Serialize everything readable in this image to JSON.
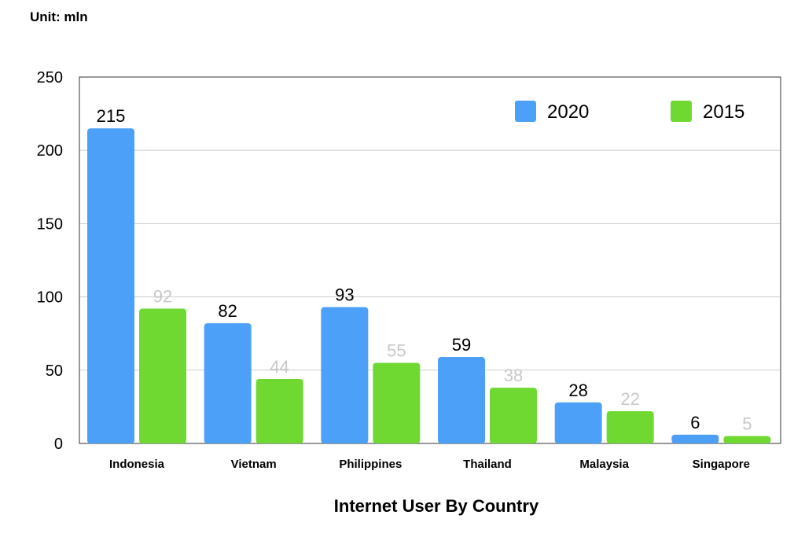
{
  "unit_label": "Unit: mln",
  "chart_data": {
    "type": "bar",
    "title": "",
    "xlabel": "Internet User By Country",
    "ylabel": "",
    "ylim": [
      0,
      250
    ],
    "yticks": [
      0,
      50,
      100,
      150,
      200,
      250
    ],
    "grid": true,
    "legend_position": "top-right",
    "categories": [
      "Indonesia",
      "Vietnam",
      "Philippines",
      "Thailand",
      "Malaysia",
      "Singapore"
    ],
    "series": [
      {
        "name": "2020",
        "color": "#4ca0f7",
        "label_color": "#000000",
        "values": [
          215,
          82,
          93,
          59,
          28,
          6
        ]
      },
      {
        "name": "2015",
        "color": "#6fd932",
        "label_color": "#c8c8c8",
        "values": [
          92,
          44,
          55,
          38,
          22,
          5
        ]
      }
    ]
  }
}
